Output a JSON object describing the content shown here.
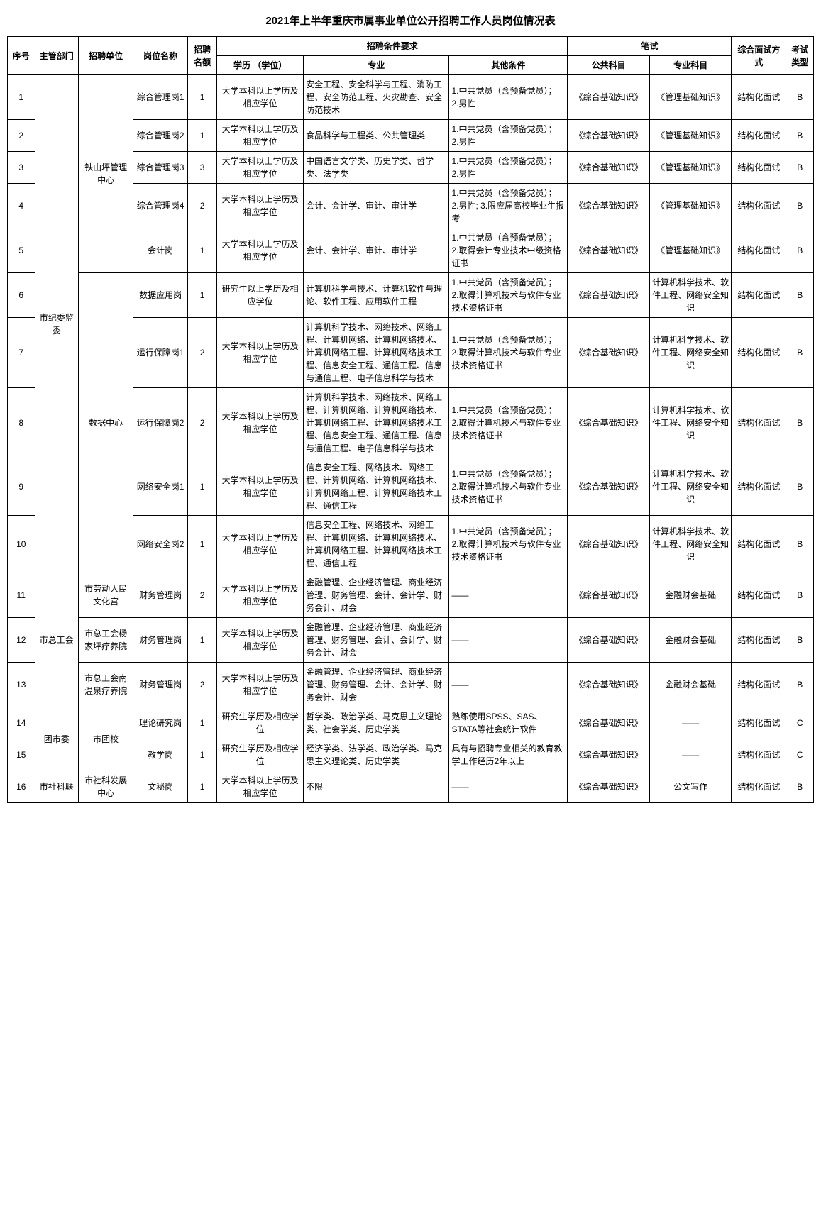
{
  "title": "2021年上半年重庆市属事业单位公开招聘工作人员岗位情况表",
  "headers": {
    "seq": "序号",
    "dept": "主管部门",
    "unit": "招聘单位",
    "post": "岗位名称",
    "quota": "招聘名额",
    "reqGroup": "招聘条件要求",
    "edu": "学历\n（学位）",
    "major": "专业",
    "other": "其他条件",
    "examGroup": "笔试",
    "sub1": "公共科目",
    "sub2": "专业科目",
    "interview": "综合面试方式",
    "type": "考试类型"
  },
  "rows": [
    {
      "seq": "1",
      "dept": "市纪委监委",
      "unit": "铁山坪管理中心",
      "post": "综合管理岗1",
      "quota": "1",
      "edu": "大学本科以上学历及相应学位",
      "major": "安全工程、安全科学与工程、消防工程、安全防范工程、火灾勘查、安全防范技术",
      "other": "1.中共党员（含预备党员）；\n2.男性",
      "sub1": "《综合基础知识》",
      "sub2": "《管理基础知识》",
      "intv": "结构化面试",
      "type": "B"
    },
    {
      "seq": "2",
      "dept": "",
      "unit": "",
      "post": "综合管理岗2",
      "quota": "1",
      "edu": "大学本科以上学历及相应学位",
      "major": "食品科学与工程类、公共管理类",
      "other": "1.中共党员（含预备党员）；\n2.男性",
      "sub1": "《综合基础知识》",
      "sub2": "《管理基础知识》",
      "intv": "结构化面试",
      "type": "B"
    },
    {
      "seq": "3",
      "dept": "",
      "unit": "",
      "post": "综合管理岗3",
      "quota": "3",
      "edu": "大学本科以上学历及相应学位",
      "major": "中国语言文学类、历史学类、哲学类、法学类",
      "other": "1.中共党员（含预备党员）；\n2.男性",
      "sub1": "《综合基础知识》",
      "sub2": "《管理基础知识》",
      "intv": "结构化面试",
      "type": "B"
    },
    {
      "seq": "4",
      "dept": "",
      "unit": "",
      "post": "综合管理岗4",
      "quota": "2",
      "edu": "大学本科以上学历及相应学位",
      "major": "会计、会计学、审计、审计学",
      "other": "1.中共党员（含预备党员）；\n2.男性;\n3.限应届高校毕业生报考",
      "sub1": "《综合基础知识》",
      "sub2": "《管理基础知识》",
      "intv": "结构化面试",
      "type": "B"
    },
    {
      "seq": "5",
      "dept": "",
      "unit": "",
      "post": "会计岗",
      "quota": "1",
      "edu": "大学本科以上学历及相应学位",
      "major": "会计、会计学、审计、审计学",
      "other": "1.中共党员（含预备党员）；\n2.取得会计专业技术中级资格证书",
      "sub1": "《综合基础知识》",
      "sub2": "《管理基础知识》",
      "intv": "结构化面试",
      "type": "B"
    },
    {
      "seq": "6",
      "dept": "",
      "unit": "数据中心",
      "post": "数据应用岗",
      "quota": "1",
      "edu": "研究生以上学历及相应学位",
      "major": "计算机科学与技术、计算机软件与理论、软件工程、应用软件工程",
      "other": "1.中共党员（含预备党员）；\n2.取得计算机技术与软件专业技术资格证书",
      "sub1": "《综合基础知识》",
      "sub2": "计算机科学技术、软件工程、网络安全知识",
      "intv": "结构化面试",
      "type": "B"
    },
    {
      "seq": "7",
      "dept": "",
      "unit": "",
      "post": "运行保障岗1",
      "quota": "2",
      "edu": "大学本科以上学历及相应学位",
      "major": "计算机科学技术、网络技术、网络工程、计算机网络、计算机网络技术、计算机网络工程、计算机网络技术工程、信息安全工程、通信工程、信息与通信工程、电子信息科学与技术",
      "other": "1.中共党员（含预备党员）；\n2.取得计算机技术与软件专业技术资格证书",
      "sub1": "《综合基础知识》",
      "sub2": "计算机科学技术、软件工程、网络安全知识",
      "intv": "结构化面试",
      "type": "B"
    },
    {
      "seq": "8",
      "dept": "",
      "unit": "",
      "post": "运行保障岗2",
      "quota": "2",
      "edu": "大学本科以上学历及相应学位",
      "major": "计算机科学技术、网络技术、网络工程、计算机网络、计算机网络技术、计算机网络工程、计算机网络技术工程、信息安全工程、通信工程、信息与通信工程、电子信息科学与技术",
      "other": "1.中共党员（含预备党员）；\n2.取得计算机技术与软件专业技术资格证书",
      "sub1": "《综合基础知识》",
      "sub2": "计算机科学技术、软件工程、网络安全知识",
      "intv": "结构化面试",
      "type": "B"
    },
    {
      "seq": "9",
      "dept": "",
      "unit": "",
      "post": "网络安全岗1",
      "quota": "1",
      "edu": "大学本科以上学历及相应学位",
      "major": "信息安全工程、网络技术、网络工程、计算机网络、计算机网络技术、计算机网络工程、计算机网络技术工程、通信工程",
      "other": "1.中共党员（含预备党员）；\n2.取得计算机技术与软件专业技术资格证书",
      "sub1": "《综合基础知识》",
      "sub2": "计算机科学技术、软件工程、网络安全知识",
      "intv": "结构化面试",
      "type": "B"
    },
    {
      "seq": "10",
      "dept": "",
      "unit": "",
      "post": "网络安全岗2",
      "quota": "1",
      "edu": "大学本科以上学历及相应学位",
      "major": "信息安全工程、网络技术、网络工程、计算机网络、计算机网络技术、计算机网络工程、计算机网络技术工程、通信工程",
      "other": "1.中共党员（含预备党员）；\n2.取得计算机技术与软件专业技术资格证书",
      "sub1": "《综合基础知识》",
      "sub2": "计算机科学技术、软件工程、网络安全知识",
      "intv": "结构化面试",
      "type": "B"
    },
    {
      "seq": "11",
      "dept": "市总工会",
      "unit": "市劳动人民文化宫",
      "post": "财务管理岗",
      "quota": "2",
      "edu": "大学本科以上学历及相应学位",
      "major": "金融管理、企业经济管理、商业经济管理、财务管理、会计、会计学、财务会计、财会",
      "other": "——",
      "sub1": "《综合基础知识》",
      "sub2": "金融财会基础",
      "intv": "结构化面试",
      "type": "B"
    },
    {
      "seq": "12",
      "dept": "",
      "unit": "市总工会杨家坪疗养院",
      "post": "财务管理岗",
      "quota": "1",
      "edu": "大学本科以上学历及相应学位",
      "major": "金融管理、企业经济管理、商业经济管理、财务管理、会计、会计学、财务会计、财会",
      "other": "——",
      "sub1": "《综合基础知识》",
      "sub2": "金融财会基础",
      "intv": "结构化面试",
      "type": "B"
    },
    {
      "seq": "13",
      "dept": "",
      "unit": "市总工会南温泉疗养院",
      "post": "财务管理岗",
      "quota": "2",
      "edu": "大学本科以上学历及相应学位",
      "major": "金融管理、企业经济管理、商业经济管理、财务管理、会计、会计学、财务会计、财会",
      "other": "——",
      "sub1": "《综合基础知识》",
      "sub2": "金融财会基础",
      "intv": "结构化面试",
      "type": "B"
    },
    {
      "seq": "14",
      "dept": "团市委",
      "unit": "市团校",
      "post": "理论研究岗",
      "quota": "1",
      "edu": "研究生学历及相应学位",
      "major": "哲学类、政治学类、马克思主义理论类、社会学类、历史学类",
      "other": "熟练使用SPSS、SAS、STATA等社会统计软件",
      "sub1": "《综合基础知识》",
      "sub2": "——",
      "intv": "结构化面试",
      "type": "C"
    },
    {
      "seq": "15",
      "dept": "",
      "unit": "",
      "post": "教学岗",
      "quota": "1",
      "edu": "研究生学历及相应学位",
      "major": "经济学类、法学类、政治学类、马克思主义理论类、历史学类",
      "other": "具有与招聘专业相关的教育教学工作经历2年以上",
      "sub1": "《综合基础知识》",
      "sub2": "——",
      "intv": "结构化面试",
      "type": "C"
    },
    {
      "seq": "16",
      "dept": "市社科联",
      "unit": "市社科发展中心",
      "post": "文秘岗",
      "quota": "1",
      "edu": "大学本科以上学历及相应学位",
      "major": "不限",
      "other": "——",
      "sub1": "《综合基础知识》",
      "sub2": "公文写作",
      "intv": "结构化面试",
      "type": "B"
    }
  ],
  "deptSpans": {
    "0": 10,
    "10": 3,
    "13": 2,
    "15": 1
  },
  "unitSpans": {
    "0": 5,
    "5": 5,
    "10": 1,
    "11": 1,
    "12": 1,
    "13": 2,
    "15": 1
  }
}
